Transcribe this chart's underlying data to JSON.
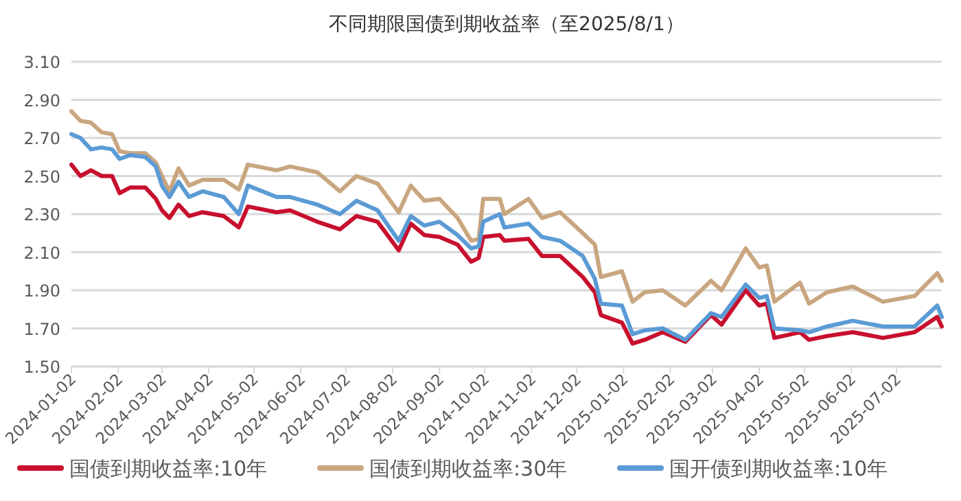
{
  "chart_data": {
    "type": "line",
    "title": "不同期限国债到期收益率（至2025/8/1）",
    "x": [
      "2024-01-02",
      "2024-01-08",
      "2024-01-15",
      "2024-01-22",
      "2024-01-29",
      "2024-02-03",
      "2024-02-10",
      "2024-02-20",
      "2024-02-27",
      "2024-03-02",
      "2024-03-07",
      "2024-03-13",
      "2024-03-20",
      "2024-03-29",
      "2024-04-12",
      "2024-04-22",
      "2024-04-28",
      "2024-05-17",
      "2024-05-26",
      "2024-06-13",
      "2024-06-28",
      "2024-07-09",
      "2024-07-23",
      "2024-08-06",
      "2024-08-14",
      "2024-08-23",
      "2024-09-02",
      "2024-09-14",
      "2024-09-23",
      "2024-09-28",
      "2024-10-01",
      "2024-10-12",
      "2024-10-15",
      "2024-10-31",
      "2024-11-09",
      "2024-11-21",
      "2024-12-06",
      "2024-12-14",
      "2024-12-18",
      "2025-01-01",
      "2025-01-08",
      "2025-01-16",
      "2025-01-28",
      "2025-02-12",
      "2025-03-01",
      "2025-03-08",
      "2025-03-24",
      "2025-04-02",
      "2025-04-07",
      "2025-04-12",
      "2025-04-29",
      "2025-05-05",
      "2025-05-17",
      "2025-06-03",
      "2025-06-23",
      "2025-07-14",
      "2025-07-29",
      "2025-08-01"
    ],
    "series": [
      {
        "name": "国债到期收益率:10年",
        "color": "#c8102e",
        "values": [
          2.56,
          2.5,
          2.53,
          2.5,
          2.5,
          2.41,
          2.44,
          2.44,
          2.38,
          2.32,
          2.28,
          2.35,
          2.29,
          2.31,
          2.29,
          2.23,
          2.34,
          2.31,
          2.32,
          2.26,
          2.22,
          2.29,
          2.26,
          2.11,
          2.25,
          2.19,
          2.18,
          2.14,
          2.05,
          2.07,
          2.18,
          2.19,
          2.16,
          2.17,
          2.08,
          2.08,
          1.97,
          1.89,
          1.77,
          1.73,
          1.62,
          1.64,
          1.68,
          1.63,
          1.77,
          1.72,
          1.9,
          1.82,
          1.83,
          1.65,
          1.68,
          1.64,
          1.66,
          1.68,
          1.65,
          1.68,
          1.76,
          1.71
        ]
      },
      {
        "name": "国债到期收益率:30年",
        "color": "#c9a67f",
        "values": [
          2.84,
          2.79,
          2.78,
          2.73,
          2.72,
          2.63,
          2.62,
          2.62,
          2.57,
          2.5,
          2.42,
          2.54,
          2.45,
          2.48,
          2.48,
          2.43,
          2.56,
          2.53,
          2.55,
          2.52,
          2.42,
          2.5,
          2.46,
          2.31,
          2.45,
          2.37,
          2.38,
          2.28,
          2.16,
          2.17,
          2.38,
          2.38,
          2.3,
          2.38,
          2.28,
          2.31,
          2.2,
          2.14,
          1.97,
          2.0,
          1.84,
          1.89,
          1.9,
          1.82,
          1.95,
          1.9,
          2.12,
          2.02,
          2.03,
          1.84,
          1.94,
          1.83,
          1.89,
          1.92,
          1.84,
          1.87,
          1.99,
          1.95
        ]
      },
      {
        "name": "国开债到期收益率:10年",
        "color": "#5b9bd5",
        "values": [
          2.72,
          2.7,
          2.64,
          2.65,
          2.64,
          2.59,
          2.61,
          2.6,
          2.55,
          2.45,
          2.39,
          2.47,
          2.39,
          2.42,
          2.39,
          2.3,
          2.45,
          2.39,
          2.39,
          2.35,
          2.3,
          2.37,
          2.32,
          2.16,
          2.29,
          2.24,
          2.26,
          2.19,
          2.12,
          2.13,
          2.26,
          2.3,
          2.23,
          2.25,
          2.18,
          2.16,
          2.08,
          1.96,
          1.83,
          1.82,
          1.67,
          1.69,
          1.7,
          1.64,
          1.78,
          1.76,
          1.93,
          1.86,
          1.87,
          1.7,
          1.69,
          1.68,
          1.71,
          1.74,
          1.71,
          1.71,
          1.82,
          1.76
        ]
      }
    ],
    "xlim": [
      "2024-01-02",
      "2025-08-01"
    ],
    "xticks": [
      "2024-01-02",
      "2024-02-02",
      "2024-03-02",
      "2024-04-02",
      "2024-05-02",
      "2024-06-02",
      "2024-07-02",
      "2024-08-02",
      "2024-09-02",
      "2024-10-02",
      "2024-11-02",
      "2024-12-02",
      "2025-01-02",
      "2025-02-02",
      "2025-03-02",
      "2025-04-02",
      "2025-05-02",
      "2025-06-02",
      "2025-07-02"
    ],
    "ylim": [
      1.5,
      3.1
    ],
    "yticks": [
      {
        "value": 1.5,
        "label": "1.50"
      },
      {
        "value": 1.7,
        "label": "1.70"
      },
      {
        "value": 1.9,
        "label": "1.90"
      },
      {
        "value": 2.1,
        "label": "2.10"
      },
      {
        "value": 2.3,
        "label": "2.30"
      },
      {
        "value": 2.5,
        "label": "2.50"
      },
      {
        "value": 2.7,
        "label": "2.70"
      },
      {
        "value": 2.9,
        "label": "2.90"
      },
      {
        "value": 3.1,
        "label": "3.10"
      }
    ],
    "grid": "y",
    "legend": "bottom",
    "marker": "none",
    "line_style": "solid"
  }
}
